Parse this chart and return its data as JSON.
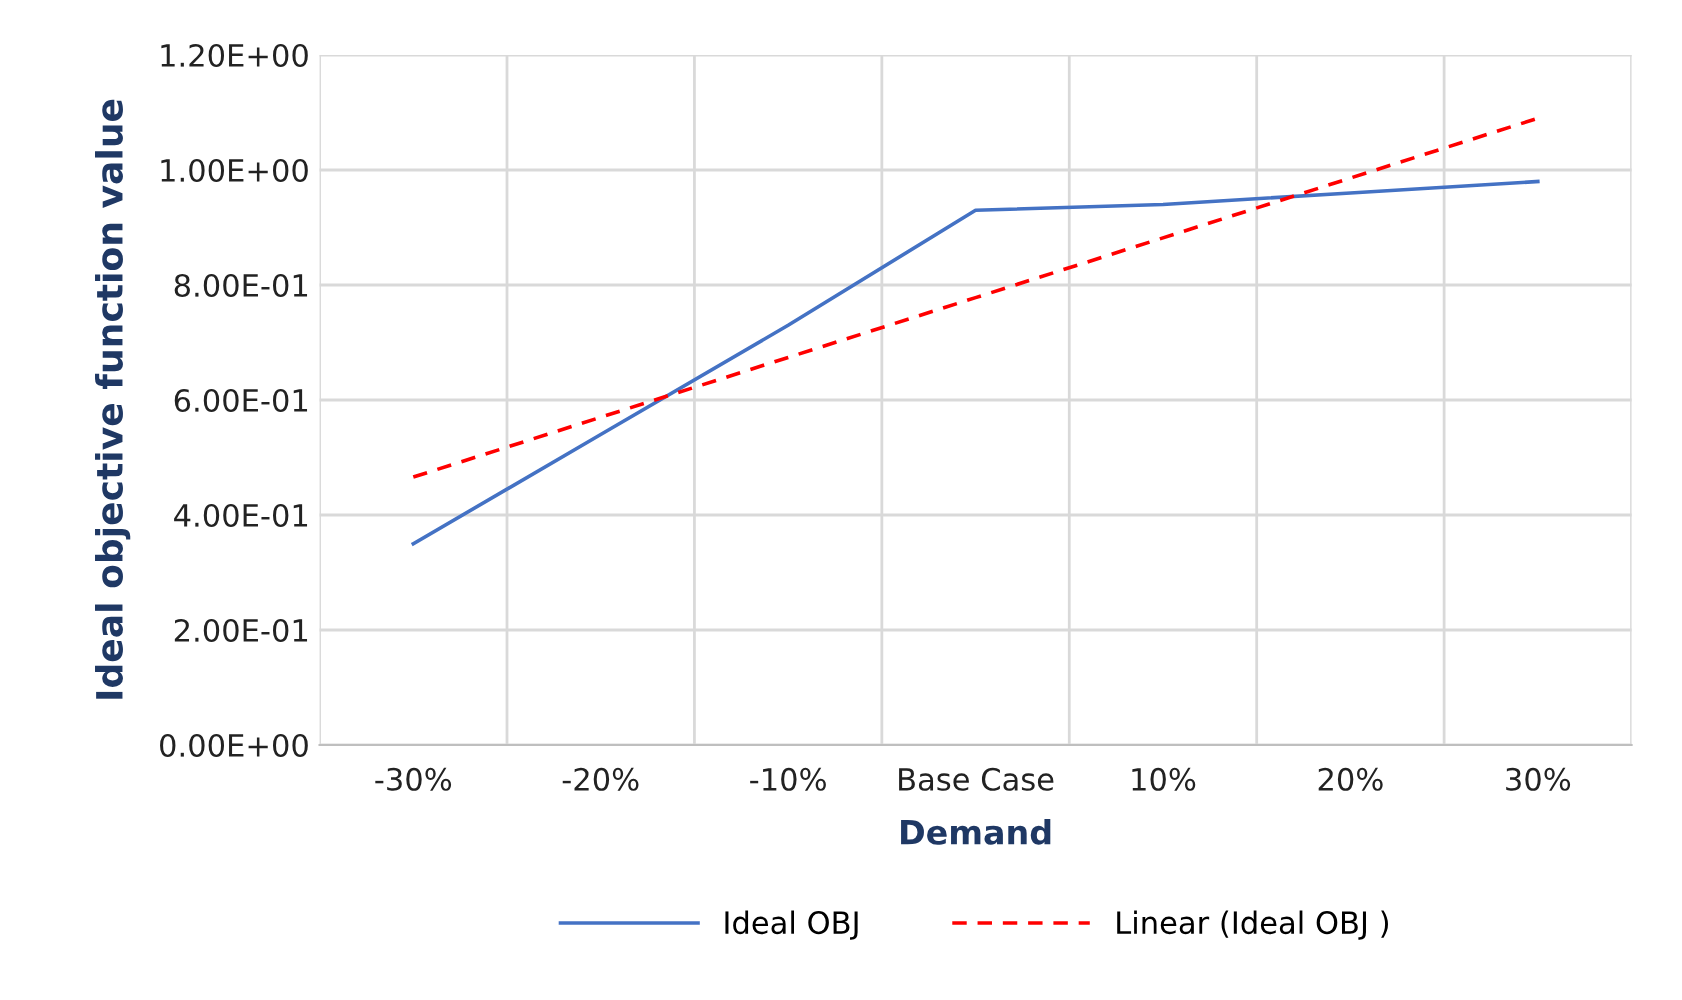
{
  "chart_data": {
    "type": "line",
    "xlabel": "Demand",
    "ylabel": "Ideal objective function value",
    "categories": [
      "-30%",
      "-20%",
      "-10%",
      "Base Case",
      "10%",
      "20%",
      "30%"
    ],
    "series": [
      {
        "name": "Ideal OBJ",
        "color": "#4472c4",
        "line_style": "solid",
        "values": [
          0.35,
          0.54,
          0.73,
          0.93,
          0.94,
          0.96,
          0.98
        ]
      },
      {
        "name": "Linear (Ideal OBJ )",
        "color": "#ff0000",
        "line_style": "dashed",
        "values": [
          0.466,
          0.57,
          0.674,
          0.778,
          0.882,
          0.986,
          1.09
        ]
      }
    ],
    "ylim": [
      0,
      1.2
    ],
    "yticks": [
      {
        "value": 0,
        "label": "0.00E+00"
      },
      {
        "value": 0.2,
        "label": "2.00E-01"
      },
      {
        "value": 0.4,
        "label": "4.00E-01"
      },
      {
        "value": 0.6,
        "label": "6.00E-01"
      },
      {
        "value": 0.8,
        "label": "8.00E-01"
      },
      {
        "value": 1.0,
        "label": "1.00E+00"
      },
      {
        "value": 1.2,
        "label": "1.20E+00"
      }
    ],
    "grid": true,
    "legend": "bottom",
    "marker": "none"
  }
}
